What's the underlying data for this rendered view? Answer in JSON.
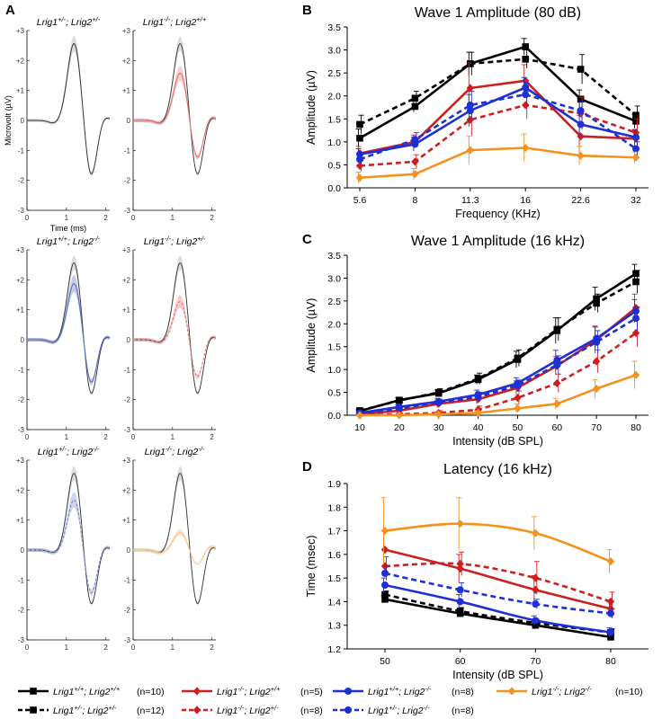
{
  "panel_labels": {
    "A": "A",
    "B": "B",
    "C": "C",
    "D": "D"
  },
  "panel_a": {
    "y_axis_label": "Microvolt (µV)",
    "x_axis_label": "Time (ms)",
    "y_ticks": [
      "+3",
      "+2",
      "+1",
      "0",
      "-1",
      "-2",
      "-3"
    ],
    "x_ticks": [
      "0",
      "1",
      "2"
    ],
    "subplots": [
      {
        "g1": "Lrig1",
        "s1": "+/-",
        "g2": "Lrig2",
        "s2": "+/-",
        "color": "#707070",
        "overlay": false,
        "peak": 2.6,
        "trough": -1.9
      },
      {
        "g1": "Lrig1",
        "s1": "-/-",
        "g2": "Lrig2",
        "s2": "+/+",
        "color": "#e57373",
        "overlay": true,
        "peak": 1.6,
        "trough": -1.3
      },
      {
        "g1": "Lrig1",
        "s1": "+/+",
        "g2": "Lrig2",
        "s2": "-/-",
        "color": "#5c6bc0",
        "overlay": true,
        "peak": 1.9,
        "trough": -1.5
      },
      {
        "g1": "Lrig1",
        "s1": "-/-",
        "g2": "Lrig2",
        "s2": "+/-",
        "color": "#e57373",
        "overlay": true,
        "peak": 1.3,
        "trough": -1.3
      },
      {
        "g1": "Lrig1",
        "s1": "+/-",
        "g2": "Lrig2",
        "s2": "-/-",
        "color": "#7986cb",
        "overlay": true,
        "peak": 1.7,
        "trough": -1.5
      },
      {
        "g1": "Lrig1",
        "s1": "-/-",
        "g2": "Lrig2",
        "s2": "-/-",
        "color": "#f0c890",
        "overlay": true,
        "peak": 0.6,
        "trough": -0.5
      }
    ]
  },
  "legend": [
    {
      "g1": "Lrig1",
      "s1": "+/+",
      "g2": "Lrig2",
      "s2": "+/+",
      "n": "(n=10)",
      "color": "#000000",
      "dashed": false,
      "marker": "square"
    },
    {
      "g1": "Lrig1",
      "s1": "-/-",
      "g2": "Lrig2",
      "s2": "+/+",
      "n": "(n=5)",
      "color": "#cc1f1f",
      "dashed": false,
      "marker": "diamond"
    },
    {
      "g1": "Lrig1",
      "s1": "+/+",
      "g2": "Lrig2",
      "s2": "-/-",
      "n": "(n=8)",
      "color": "#1f2fd6",
      "dashed": false,
      "marker": "circle"
    },
    {
      "g1": "Lrig1",
      "s1": "-/-",
      "g2": "Lrig2",
      "s2": "-/-",
      "n": "(n=10)",
      "color": "#f5921e",
      "dashed": false,
      "marker": "diamond"
    },
    {
      "g1": "Lrig1",
      "s1": "+/-",
      "g2": "Lrig2",
      "s2": "+/-",
      "n": "(n=12)",
      "color": "#000000",
      "dashed": true,
      "marker": "square"
    },
    {
      "g1": "Lrig1",
      "s1": "-/-",
      "g2": "Lrig2",
      "s2": "+/-",
      "n": "(n=8)",
      "color": "#cc1f1f",
      "dashed": true,
      "marker": "diamond"
    },
    {
      "g1": "Lrig1",
      "s1": "+/-",
      "g2": "Lrig2",
      "s2": "-/-",
      "n": "(n=8)",
      "color": "#1f2fd6",
      "dashed": true,
      "marker": "circle"
    }
  ],
  "chart_data": [
    {
      "type": "line",
      "title": "Wave 1 Amplitude (80 dB)",
      "xlabel": "Frequency (KHz)",
      "ylabel": "Amplitude (µV)",
      "categories": [
        "5.6",
        "8",
        "11.3",
        "16",
        "22.6",
        "32"
      ],
      "ylim": [
        0,
        3.5
      ],
      "yticks": [
        "0.0",
        "0.5",
        "1.0",
        "1.5",
        "2.0",
        "2.5",
        "3.0",
        "3.5"
      ],
      "grid": false,
      "series": [
        {
          "values": [
            1.08,
            1.77,
            2.7,
            3.07,
            1.93,
            1.45
          ],
          "error": [
            0.2,
            0.12,
            0.25,
            0.18,
            0.2,
            0.15
          ],
          "color": "#000000",
          "dashed": false,
          "marker": "square"
        },
        {
          "values": [
            1.38,
            1.95,
            2.7,
            2.8,
            2.58,
            1.58
          ],
          "error": [
            0.2,
            0.15,
            0.25,
            0.2,
            0.32,
            0.2
          ],
          "color": "#000000",
          "dashed": true,
          "marker": "square"
        },
        {
          "values": [
            0.75,
            1.0,
            2.17,
            2.33,
            1.12,
            1.07
          ],
          "error": [
            0.15,
            0.15,
            0.55,
            0.35,
            0.45,
            0.2
          ],
          "color": "#cc1f1f",
          "dashed": false,
          "marker": "diamond"
        },
        {
          "values": [
            0.48,
            0.57,
            1.48,
            1.8,
            1.62,
            1.2
          ],
          "error": [
            0.12,
            0.15,
            0.35,
            0.3,
            0.35,
            0.3
          ],
          "color": "#cc1f1f",
          "dashed": true,
          "marker": "diamond"
        },
        {
          "values": [
            0.73,
            0.95,
            1.68,
            2.18,
            1.38,
            1.1
          ],
          "error": [
            0.12,
            0.15,
            0.35,
            0.22,
            0.25,
            0.15
          ],
          "color": "#1f2fd6",
          "dashed": false,
          "marker": "circle"
        },
        {
          "values": [
            0.62,
            1.05,
            1.8,
            2.03,
            1.68,
            0.85
          ],
          "error": [
            0.12,
            0.15,
            0.3,
            0.25,
            0.2,
            0.15
          ],
          "color": "#1f2fd6",
          "dashed": true,
          "marker": "circle"
        },
        {
          "values": [
            0.22,
            0.3,
            0.82,
            0.87,
            0.7,
            0.66
          ],
          "error": [
            0.12,
            0.12,
            0.3,
            0.3,
            0.2,
            0.12
          ],
          "color": "#f5921e",
          "dashed": false,
          "marker": "diamond"
        }
      ]
    },
    {
      "type": "line",
      "title": "Wave 1 Amplitude (16 kHz)",
      "xlabel": "Intensity (dB SPL)",
      "ylabel": "Amplitude (µV)",
      "categories": [
        "10",
        "20",
        "30",
        "40",
        "50",
        "60",
        "70",
        "80"
      ],
      "ylim": [
        0,
        3.5
      ],
      "yticks": [
        "0.0",
        "0.5",
        "1.0",
        "1.5",
        "2.0",
        "2.5",
        "3.0",
        "3.5"
      ],
      "grid": false,
      "series": [
        {
          "values": [
            0.09,
            0.33,
            0.48,
            0.78,
            1.22,
            1.85,
            2.55,
            3.1
          ],
          "error": [
            0.03,
            0.05,
            0.07,
            0.1,
            0.18,
            0.28,
            0.25,
            0.2
          ],
          "color": "#000000",
          "dashed": false,
          "marker": "square"
        },
        {
          "values": [
            0.1,
            0.32,
            0.5,
            0.8,
            1.25,
            1.88,
            2.45,
            2.92
          ],
          "error": [
            0.03,
            0.05,
            0.08,
            0.12,
            0.18,
            0.25,
            0.2,
            0.25
          ],
          "color": "#000000",
          "dashed": true,
          "marker": "square"
        },
        {
          "values": [
            0.02,
            0.1,
            0.25,
            0.35,
            0.6,
            1.08,
            1.65,
            2.35
          ],
          "error": [
            0.02,
            0.05,
            0.08,
            0.1,
            0.15,
            0.2,
            0.3,
            0.3
          ],
          "color": "#cc1f1f",
          "dashed": false,
          "marker": "diamond"
        },
        {
          "values": [
            0.0,
            0.02,
            0.05,
            0.12,
            0.38,
            0.7,
            1.18,
            1.8
          ],
          "error": [
            0.02,
            0.03,
            0.05,
            0.08,
            0.15,
            0.2,
            0.25,
            0.3
          ],
          "color": "#cc1f1f",
          "dashed": true,
          "marker": "diamond"
        },
        {
          "values": [
            0.05,
            0.18,
            0.3,
            0.45,
            0.7,
            1.2,
            1.68,
            2.28
          ],
          "error": [
            0.03,
            0.05,
            0.07,
            0.1,
            0.12,
            0.22,
            0.25,
            0.25
          ],
          "color": "#1f2fd6",
          "dashed": false,
          "marker": "circle"
        },
        {
          "values": [
            0.03,
            0.15,
            0.28,
            0.4,
            0.65,
            1.1,
            1.6,
            2.12
          ],
          "error": [
            0.03,
            0.05,
            0.07,
            0.1,
            0.12,
            0.2,
            0.25,
            0.25
          ],
          "color": "#1f2fd6",
          "dashed": true,
          "marker": "circle"
        },
        {
          "values": [
            0.0,
            0.0,
            0.02,
            0.05,
            0.15,
            0.25,
            0.58,
            0.88
          ],
          "error": [
            0.01,
            0.02,
            0.03,
            0.05,
            0.1,
            0.12,
            0.2,
            0.3
          ],
          "color": "#f5921e",
          "dashed": false,
          "marker": "diamond"
        }
      ]
    },
    {
      "type": "line",
      "title": "Latency (16 kHz)",
      "xlabel": "Intensity (dB SPL)",
      "ylabel": "Time (msec)",
      "categories": [
        "50",
        "60",
        "70",
        "80"
      ],
      "ylim": [
        1.2,
        1.9
      ],
      "yticks": [
        "1.2",
        "1.3",
        "1.4",
        "1.5",
        "1.6",
        "1.7",
        "1.8",
        "1.9"
      ],
      "grid": false,
      "series": [
        {
          "values": [
            1.41,
            1.35,
            1.3,
            1.25
          ],
          "error": [
            0.015,
            0.015,
            0.015,
            0.015
          ],
          "color": "#000000",
          "dashed": false,
          "marker": "square"
        },
        {
          "values": [
            1.43,
            1.36,
            1.31,
            1.27
          ],
          "error": [
            0.015,
            0.015,
            0.015,
            0.015
          ],
          "color": "#000000",
          "dashed": true,
          "marker": "square"
        },
        {
          "values": [
            1.62,
            1.54,
            1.45,
            1.37
          ],
          "error": [
            0.08,
            0.06,
            0.06,
            0.03
          ],
          "color": "#cc1f1f",
          "dashed": false,
          "marker": "diamond"
        },
        {
          "values": [
            1.55,
            1.56,
            1.5,
            1.4
          ],
          "error": [
            0.04,
            0.05,
            0.07,
            0.04
          ],
          "color": "#cc1f1f",
          "dashed": true,
          "marker": "diamond"
        },
        {
          "values": [
            1.47,
            1.4,
            1.32,
            1.27
          ],
          "error": [
            0.03,
            0.03,
            0.02,
            0.02
          ],
          "color": "#1f2fd6",
          "dashed": false,
          "marker": "circle"
        },
        {
          "values": [
            1.52,
            1.45,
            1.39,
            1.35
          ],
          "error": [
            0.03,
            0.03,
            0.02,
            0.02
          ],
          "color": "#1f2fd6",
          "dashed": true,
          "marker": "circle"
        },
        {
          "values": [
            1.7,
            1.73,
            1.69,
            1.57
          ],
          "error": [
            0.14,
            0.11,
            0.07,
            0.05
          ],
          "color": "#f5921e",
          "dashed": false,
          "marker": "diamond"
        }
      ]
    }
  ]
}
